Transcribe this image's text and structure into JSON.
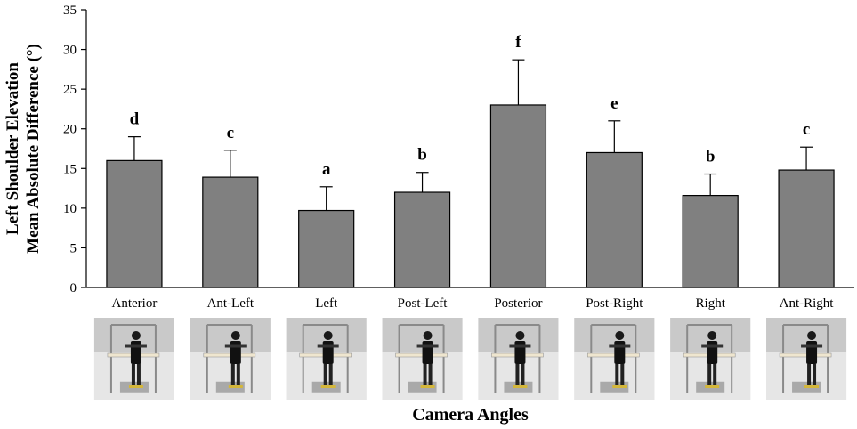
{
  "chart_data": {
    "type": "bar",
    "categories": [
      "Anterior",
      "Ant-Left",
      "Left",
      "Post-Left",
      "Posterior",
      "Post-Right",
      "Right",
      "Ant-Right"
    ],
    "series": [
      {
        "values": [
          16.0,
          13.9,
          9.7,
          12.0,
          23.0,
          17.0,
          11.6,
          14.8
        ],
        "error": [
          3.0,
          3.4,
          3.0,
          2.5,
          5.7,
          4.0,
          2.7,
          2.9
        ],
        "significance": [
          "d",
          "c",
          "a",
          "b",
          "f",
          "e",
          "b",
          "c"
        ]
      }
    ],
    "xlabel": "Camera Angles",
    "ylabel_lines": [
      "Left Shoulder Elevation",
      "Mean Absolute Difference (°)"
    ],
    "ylim": [
      0,
      35
    ],
    "yticks": [
      0,
      5,
      10,
      15,
      20,
      25,
      30,
      35
    ],
    "grid": false,
    "legend": "none",
    "colors": {
      "bar": "#808080",
      "bar_edge": "#000000",
      "axis": "#000000",
      "error": "#000000"
    },
    "thumbnails": "photo of participant at test frame under each category"
  }
}
